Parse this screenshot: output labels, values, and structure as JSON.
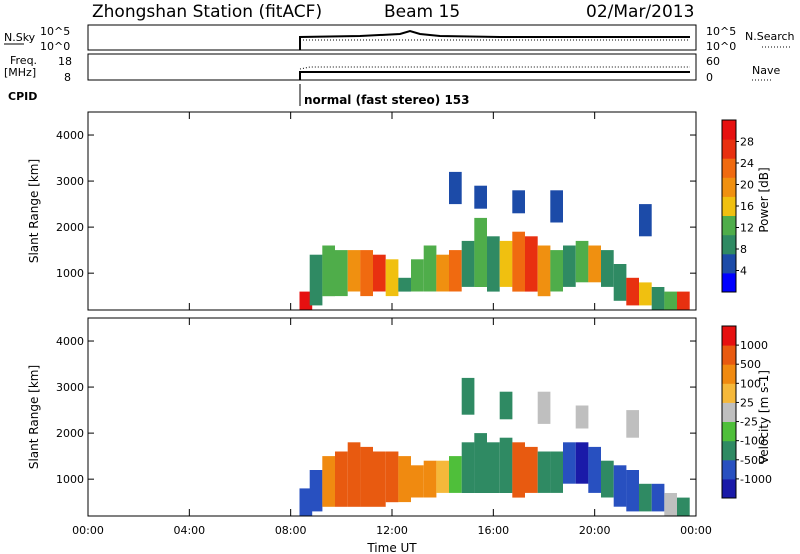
{
  "header": {
    "station": "Zhongshan Station (fitACF)",
    "beam": "Beam 15",
    "date": "02/Mar/2013"
  },
  "summary": {
    "nsky_label": "N.Sky",
    "nsky_ticks": [
      "10^5",
      "10^0"
    ],
    "nsearch_label": "N.Search",
    "nsearch_ticks": [
      "10^5",
      "10^0"
    ],
    "freq_label_1": "Freq.",
    "freq_label_2": "[MHz]",
    "freq_ticks": [
      "18",
      "8"
    ],
    "nave_label": "Nave",
    "nave_ticks": [
      "60",
      "0"
    ],
    "cpid_label": "CPID",
    "cpid_text": "normal (fast stereo) 153"
  },
  "colors": {
    "power_bar": [
      "#0000ff",
      "#1c4ba8",
      "#2f8a63",
      "#4fad4a",
      "#f0c010",
      "#f09010",
      "#f06a10",
      "#e83010",
      "#e61010"
    ],
    "velocity_bar": [
      "#1a1aa8",
      "#2850c0",
      "#2f8a63",
      "#4fbf3a",
      "#bfbfbf",
      "#f5b83a",
      "#f08a10",
      "#e85a10",
      "#e61010"
    ]
  },
  "chart_data": [
    {
      "type": "heatmap",
      "name": "power",
      "ylabel": "Slant Range [km]",
      "yticks": [
        "1000",
        "2000",
        "3000",
        "4000"
      ],
      "ylim": [
        200,
        4500
      ],
      "colorbar_label": "Power [dB]",
      "colorbar_ticks": [
        "4",
        "8",
        "12",
        "16",
        "20",
        "24",
        "28"
      ],
      "blobs": [
        {
          "t": 8.6,
          "r1": 200,
          "r2": 600,
          "c": 8
        },
        {
          "t": 9.0,
          "r1": 300,
          "r2": 1400,
          "c": 2
        },
        {
          "t": 9.5,
          "r1": 500,
          "r2": 1600,
          "c": 3
        },
        {
          "t": 10.0,
          "r1": 500,
          "r2": 1500,
          "c": 3
        },
        {
          "t": 10.5,
          "r1": 600,
          "r2": 1500,
          "c": 5
        },
        {
          "t": 11.0,
          "r1": 500,
          "r2": 1500,
          "c": 6
        },
        {
          "t": 11.5,
          "r1": 600,
          "r2": 1400,
          "c": 7
        },
        {
          "t": 12.0,
          "r1": 500,
          "r2": 1300,
          "c": 4
        },
        {
          "t": 12.5,
          "r1": 600,
          "r2": 900,
          "c": 2
        },
        {
          "t": 13.0,
          "r1": 600,
          "r2": 1300,
          "c": 3
        },
        {
          "t": 13.5,
          "r1": 600,
          "r2": 1600,
          "c": 3
        },
        {
          "t": 14.0,
          "r1": 600,
          "r2": 1400,
          "c": 5
        },
        {
          "t": 14.5,
          "r1": 600,
          "r2": 1500,
          "c": 6
        },
        {
          "t": 15.0,
          "r1": 700,
          "r2": 1700,
          "c": 2
        },
        {
          "t": 15.5,
          "r1": 700,
          "r2": 2200,
          "c": 3
        },
        {
          "t": 16.0,
          "r1": 600,
          "r2": 1800,
          "c": 2
        },
        {
          "t": 16.5,
          "r1": 700,
          "r2": 1700,
          "c": 4
        },
        {
          "t": 17.0,
          "r1": 600,
          "r2": 1900,
          "c": 6
        },
        {
          "t": 17.5,
          "r1": 600,
          "r2": 1800,
          "c": 7
        },
        {
          "t": 18.0,
          "r1": 500,
          "r2": 1600,
          "c": 5
        },
        {
          "t": 18.5,
          "r1": 600,
          "r2": 1500,
          "c": 3
        },
        {
          "t": 19.0,
          "r1": 700,
          "r2": 1600,
          "c": 2
        },
        {
          "t": 19.5,
          "r1": 800,
          "r2": 1700,
          "c": 3
        },
        {
          "t": 20.0,
          "r1": 800,
          "r2": 1600,
          "c": 5
        },
        {
          "t": 20.5,
          "r1": 700,
          "r2": 1500,
          "c": 2
        },
        {
          "t": 21.0,
          "r1": 400,
          "r2": 1200,
          "c": 2
        },
        {
          "t": 21.5,
          "r1": 300,
          "r2": 900,
          "c": 7
        },
        {
          "t": 22.0,
          "r1": 300,
          "r2": 800,
          "c": 4
        },
        {
          "t": 22.5,
          "r1": 200,
          "r2": 700,
          "c": 2
        },
        {
          "t": 23.0,
          "r1": 200,
          "r2": 600,
          "c": 3
        },
        {
          "t": 23.5,
          "r1": 200,
          "r2": 600,
          "c": 7
        },
        {
          "t": 14.5,
          "r1": 2500,
          "r2": 3200,
          "c": 1
        },
        {
          "t": 15.5,
          "r1": 2400,
          "r2": 2900,
          "c": 1
        },
        {
          "t": 17.0,
          "r1": 2300,
          "r2": 2800,
          "c": 1
        },
        {
          "t": 18.5,
          "r1": 2100,
          "r2": 2800,
          "c": 1
        },
        {
          "t": 22.0,
          "r1": 1800,
          "r2": 2500,
          "c": 1
        }
      ]
    },
    {
      "type": "heatmap",
      "name": "velocity",
      "ylabel": "Slant Range [km]",
      "yticks": [
        "1000",
        "2000",
        "3000",
        "4000"
      ],
      "ylim": [
        200,
        4500
      ],
      "xlabel": "Time UT",
      "xticks": [
        "00:00",
        "04:00",
        "08:00",
        "12:00",
        "16:00",
        "20:00",
        "00:00"
      ],
      "xlim": [
        0,
        24
      ],
      "colorbar_label": "Velocity [m s-1]",
      "colorbar_ticks": [
        "1000",
        "500",
        "100",
        "25",
        "-25",
        "-100",
        "-500",
        "-1000"
      ],
      "blobs": [
        {
          "t": 8.6,
          "r1": 200,
          "r2": 800,
          "c": 1
        },
        {
          "t": 9.0,
          "r1": 300,
          "r2": 1200,
          "c": 1
        },
        {
          "t": 9.5,
          "r1": 400,
          "r2": 1500,
          "c": 6
        },
        {
          "t": 10.0,
          "r1": 400,
          "r2": 1600,
          "c": 7
        },
        {
          "t": 10.5,
          "r1": 400,
          "r2": 1800,
          "c": 7
        },
        {
          "t": 11.0,
          "r1": 400,
          "r2": 1700,
          "c": 7
        },
        {
          "t": 11.5,
          "r1": 400,
          "r2": 1600,
          "c": 7
        },
        {
          "t": 12.0,
          "r1": 500,
          "r2": 1600,
          "c": 7
        },
        {
          "t": 12.5,
          "r1": 500,
          "r2": 1500,
          "c": 6
        },
        {
          "t": 13.0,
          "r1": 600,
          "r2": 1300,
          "c": 6
        },
        {
          "t": 13.5,
          "r1": 600,
          "r2": 1400,
          "c": 6
        },
        {
          "t": 14.0,
          "r1": 700,
          "r2": 1400,
          "c": 5
        },
        {
          "t": 14.5,
          "r1": 700,
          "r2": 1500,
          "c": 3
        },
        {
          "t": 15.0,
          "r1": 700,
          "r2": 1800,
          "c": 2
        },
        {
          "t": 15.5,
          "r1": 700,
          "r2": 2000,
          "c": 2
        },
        {
          "t": 16.0,
          "r1": 700,
          "r2": 1800,
          "c": 2
        },
        {
          "t": 16.5,
          "r1": 700,
          "r2": 1900,
          "c": 2
        },
        {
          "t": 17.0,
          "r1": 600,
          "r2": 1800,
          "c": 7
        },
        {
          "t": 17.5,
          "r1": 700,
          "r2": 1700,
          "c": 7
        },
        {
          "t": 18.0,
          "r1": 700,
          "r2": 1600,
          "c": 2
        },
        {
          "t": 18.5,
          "r1": 700,
          "r2": 1600,
          "c": 2
        },
        {
          "t": 19.0,
          "r1": 900,
          "r2": 1800,
          "c": 1
        },
        {
          "t": 19.5,
          "r1": 900,
          "r2": 1800,
          "c": 0
        },
        {
          "t": 20.0,
          "r1": 700,
          "r2": 1700,
          "c": 1
        },
        {
          "t": 20.5,
          "r1": 600,
          "r2": 1400,
          "c": 2
        },
        {
          "t": 21.0,
          "r1": 400,
          "r2": 1300,
          "c": 1
        },
        {
          "t": 21.5,
          "r1": 300,
          "r2": 1200,
          "c": 1
        },
        {
          "t": 22.0,
          "r1": 300,
          "r2": 900,
          "c": 2
        },
        {
          "t": 22.5,
          "r1": 300,
          "r2": 900,
          "c": 1
        },
        {
          "t": 23.0,
          "r1": 200,
          "r2": 700,
          "c": 4
        },
        {
          "t": 23.5,
          "r1": 200,
          "r2": 600,
          "c": 2
        },
        {
          "t": 15.0,
          "r1": 2400,
          "r2": 3200,
          "c": 2
        },
        {
          "t": 16.5,
          "r1": 2300,
          "r2": 2900,
          "c": 2
        },
        {
          "t": 18.0,
          "r1": 2200,
          "r2": 2900,
          "c": 4
        },
        {
          "t": 19.5,
          "r1": 2100,
          "r2": 2600,
          "c": 4
        },
        {
          "t": 21.5,
          "r1": 1900,
          "r2": 2500,
          "c": 4
        }
      ]
    }
  ]
}
